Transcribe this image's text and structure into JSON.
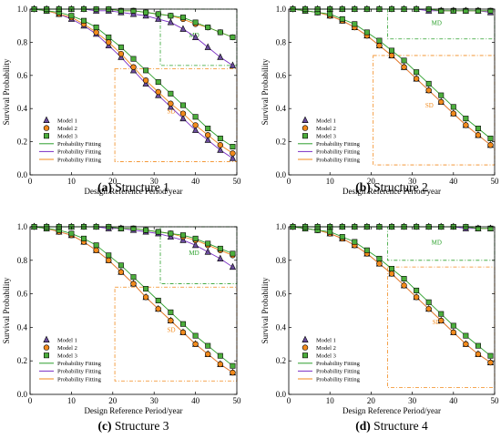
{
  "colors": {
    "model1": "#6a4c9c",
    "model2": "#f28a1c",
    "model3": "#4cae3c",
    "fit_green": "#2ca02c",
    "fit_purple": "#7a2fc4",
    "fit_orange": "#f28a1c",
    "region_md": "#2ca02c",
    "region_sd": "#f28a1c"
  },
  "chart_data": [
    {
      "type": "line",
      "caption_letter": "(a)",
      "caption_text": " Structure 1",
      "xlabel": "Design Reference Period/year",
      "ylabel": "Survival Probability",
      "xlim": [
        0,
        50
      ],
      "ylim": [
        0,
        1.0
      ],
      "x_ticks": [
        "0",
        "10",
        "20",
        "30",
        "40",
        "50"
      ],
      "y_ticks": [
        "0.0",
        "0.2",
        "0.4",
        "0.6",
        "0.8",
        "1.0"
      ],
      "legend_position": "lower-left",
      "regions": [
        {
          "label": "MD",
          "x": [
            31.5,
            50
          ],
          "y": [
            0.66,
            1.0
          ],
          "color": "green"
        },
        {
          "label": "SD",
          "x": [
            20.5,
            50
          ],
          "y": [
            0.08,
            0.64
          ],
          "color": "orange"
        }
      ],
      "x": [
        1,
        4,
        7,
        10,
        13,
        16,
        19,
        22,
        25,
        28,
        31,
        34,
        37,
        40,
        43,
        46,
        49
      ],
      "series": [
        {
          "name": "Model 1",
          "group": "SD",
          "marker": "triangle",
          "values": [
            1.0,
            0.99,
            0.97,
            0.94,
            0.9,
            0.85,
            0.78,
            0.71,
            0.63,
            0.55,
            0.48,
            0.41,
            0.34,
            0.27,
            0.21,
            0.15,
            0.1
          ]
        },
        {
          "name": "Model 2",
          "group": "SD",
          "marker": "circle",
          "values": [
            1.0,
            0.99,
            0.97,
            0.95,
            0.91,
            0.86,
            0.8,
            0.73,
            0.65,
            0.57,
            0.5,
            0.43,
            0.37,
            0.3,
            0.24,
            0.18,
            0.13
          ]
        },
        {
          "name": "Model 3",
          "group": "SD",
          "marker": "square",
          "values": [
            1.0,
            0.99,
            0.98,
            0.96,
            0.93,
            0.89,
            0.83,
            0.77,
            0.7,
            0.63,
            0.56,
            0.49,
            0.42,
            0.35,
            0.28,
            0.22,
            0.17
          ]
        },
        {
          "name": "",
          "group": "MD",
          "marker": "triangle",
          "values": [
            1.0,
            1.0,
            1.0,
            1.0,
            1.0,
            0.99,
            0.99,
            0.98,
            0.97,
            0.96,
            0.94,
            0.92,
            0.88,
            0.83,
            0.77,
            0.71,
            0.66
          ]
        },
        {
          "name": "",
          "group": "MD",
          "marker": "circle",
          "values": [
            1.0,
            1.0,
            1.0,
            1.0,
            1.0,
            1.0,
            1.0,
            0.99,
            0.99,
            0.98,
            0.97,
            0.96,
            0.94,
            0.91,
            0.89,
            0.86,
            0.83
          ]
        },
        {
          "name": "",
          "group": "MD",
          "marker": "square",
          "values": [
            1.0,
            1.0,
            1.0,
            1.0,
            1.0,
            1.0,
            1.0,
            0.99,
            0.99,
            0.98,
            0.97,
            0.96,
            0.95,
            0.92,
            0.89,
            0.86,
            0.83
          ]
        }
      ],
      "legend": [
        "Model 1",
        "Model 2",
        "Model 3",
        "Probability Fitting",
        "Probability Fitting",
        "Probability Fitting"
      ]
    },
    {
      "type": "line",
      "caption_letter": "(b)",
      "caption_text": " Structure 2",
      "xlabel": "Design Reference Period/year",
      "ylabel": "Survival Probability",
      "xlim": [
        0,
        50
      ],
      "ylim": [
        0,
        1.0
      ],
      "x_ticks": [
        "0",
        "10",
        "20",
        "30",
        "40",
        "50"
      ],
      "y_ticks": [
        "0.0",
        "0.2",
        "0.4",
        "0.6",
        "0.8",
        "1.0"
      ],
      "legend_position": "lower-left",
      "regions": [
        {
          "label": "MD",
          "x": [
            24,
            50
          ],
          "y": [
            0.82,
            1.0
          ],
          "color": "green"
        },
        {
          "label": "SD",
          "x": [
            20.5,
            50
          ],
          "y": [
            0.06,
            0.72
          ],
          "color": "orange"
        }
      ],
      "x": [
        1,
        4,
        7,
        10,
        13,
        16,
        19,
        22,
        25,
        28,
        31,
        34,
        37,
        40,
        43,
        46,
        49
      ],
      "series": [
        {
          "name": "Model 1",
          "group": "SD",
          "marker": "triangle",
          "values": [
            1.0,
            0.99,
            0.98,
            0.96,
            0.93,
            0.89,
            0.84,
            0.78,
            0.72,
            0.65,
            0.58,
            0.51,
            0.44,
            0.37,
            0.3,
            0.24,
            0.18
          ]
        },
        {
          "name": "Model 2",
          "group": "SD",
          "marker": "circle",
          "values": [
            1.0,
            0.99,
            0.98,
            0.96,
            0.93,
            0.89,
            0.84,
            0.78,
            0.72,
            0.65,
            0.58,
            0.51,
            0.44,
            0.37,
            0.3,
            0.24,
            0.18
          ]
        },
        {
          "name": "Model 3",
          "group": "SD",
          "marker": "square",
          "values": [
            1.0,
            0.99,
            0.98,
            0.97,
            0.94,
            0.91,
            0.86,
            0.81,
            0.75,
            0.69,
            0.62,
            0.55,
            0.48,
            0.41,
            0.34,
            0.28,
            0.22
          ]
        },
        {
          "name": "",
          "group": "MD",
          "marker": "triangle",
          "values": [
            1.0,
            1.0,
            1.0,
            1.0,
            1.0,
            1.0,
            1.0,
            1.0,
            1.0,
            1.0,
            1.0,
            0.99,
            0.99,
            0.99,
            0.99,
            0.99,
            0.98
          ]
        },
        {
          "name": "",
          "group": "MD",
          "marker": "circle",
          "values": [
            1.0,
            1.0,
            1.0,
            1.0,
            1.0,
            1.0,
            1.0,
            1.0,
            1.0,
            1.0,
            1.0,
            1.0,
            0.99,
            0.99,
            0.99,
            0.99,
            0.99
          ]
        },
        {
          "name": "",
          "group": "MD",
          "marker": "square",
          "values": [
            1.0,
            1.0,
            1.0,
            1.0,
            1.0,
            1.0,
            1.0,
            1.0,
            1.0,
            1.0,
            1.0,
            1.0,
            0.99,
            0.99,
            0.99,
            0.99,
            0.99
          ]
        }
      ],
      "legend": [
        "Model 1",
        "Model 2",
        "Model 3",
        "Probability Fitting",
        "Probability Fitting",
        "Probability Fitting"
      ]
    },
    {
      "type": "line",
      "caption_letter": "(c)",
      "caption_text": " Structure 3",
      "xlabel": "Design Reference Period/year",
      "ylabel": "Survival Probability",
      "xlim": [
        0,
        50
      ],
      "ylim": [
        0,
        1.0
      ],
      "x_ticks": [
        "0",
        "10",
        "20",
        "30",
        "40",
        "50"
      ],
      "y_ticks": [
        "0.0",
        "0.2",
        "0.4",
        "0.6",
        "0.8",
        "1.0"
      ],
      "legend_position": "lower-left",
      "regions": [
        {
          "label": "MD",
          "x": [
            31.5,
            50
          ],
          "y": [
            0.66,
            1.0
          ],
          "color": "green"
        },
        {
          "label": "SD",
          "x": [
            20.5,
            50
          ],
          "y": [
            0.08,
            0.64
          ],
          "color": "orange"
        }
      ],
      "x": [
        1,
        4,
        7,
        10,
        13,
        16,
        19,
        22,
        25,
        28,
        31,
        34,
        37,
        40,
        43,
        46,
        49
      ],
      "series": [
        {
          "name": "Model 1",
          "group": "SD",
          "marker": "triangle",
          "values": [
            1.0,
            0.99,
            0.97,
            0.95,
            0.91,
            0.86,
            0.8,
            0.73,
            0.66,
            0.58,
            0.51,
            0.44,
            0.37,
            0.3,
            0.24,
            0.18,
            0.13
          ]
        },
        {
          "name": "Model 2",
          "group": "SD",
          "marker": "circle",
          "values": [
            1.0,
            0.99,
            0.97,
            0.95,
            0.91,
            0.86,
            0.8,
            0.73,
            0.66,
            0.58,
            0.51,
            0.44,
            0.37,
            0.3,
            0.24,
            0.18,
            0.13
          ]
        },
        {
          "name": "Model 3",
          "group": "SD",
          "marker": "square",
          "values": [
            1.0,
            0.99,
            0.98,
            0.96,
            0.93,
            0.89,
            0.83,
            0.77,
            0.7,
            0.63,
            0.56,
            0.49,
            0.42,
            0.35,
            0.29,
            0.23,
            0.17
          ]
        },
        {
          "name": "",
          "group": "MD",
          "marker": "triangle",
          "values": [
            1.0,
            1.0,
            1.0,
            1.0,
            1.0,
            1.0,
            0.99,
            0.99,
            0.98,
            0.97,
            0.96,
            0.94,
            0.92,
            0.89,
            0.85,
            0.81,
            0.76
          ]
        },
        {
          "name": "",
          "group": "MD",
          "marker": "circle",
          "values": [
            1.0,
            1.0,
            1.0,
            1.0,
            1.0,
            1.0,
            1.0,
            0.99,
            0.99,
            0.98,
            0.97,
            0.96,
            0.94,
            0.92,
            0.89,
            0.86,
            0.83
          ]
        },
        {
          "name": "",
          "group": "MD",
          "marker": "square",
          "values": [
            1.0,
            1.0,
            1.0,
            1.0,
            1.0,
            1.0,
            1.0,
            0.99,
            0.99,
            0.98,
            0.97,
            0.96,
            0.95,
            0.93,
            0.9,
            0.87,
            0.84
          ]
        }
      ],
      "legend": [
        "Model 1",
        "Model 2",
        "Model 3",
        "Probability Fitting",
        "Probability Fitting",
        "Probability Fitting"
      ]
    },
    {
      "type": "line",
      "caption_letter": "(d)",
      "caption_text": " Structure 4",
      "xlabel": "Design Reference Period/year",
      "ylabel": "Survival Probability",
      "xlim": [
        0,
        50
      ],
      "ylim": [
        0,
        1.0
      ],
      "x_ticks": [
        "0",
        "10",
        "20",
        "30",
        "40",
        "50"
      ],
      "y_ticks": [
        "0.0",
        "0.2",
        "0.4",
        "0.6",
        "0.8",
        "1.0"
      ],
      "legend_position": "lower-left",
      "regions": [
        {
          "label": "MD",
          "x": [
            24,
            50
          ],
          "y": [
            0.8,
            1.0
          ],
          "color": "green"
        },
        {
          "label": "SD",
          "x": [
            24,
            50
          ],
          "y": [
            0.04,
            0.76
          ],
          "color": "orange"
        }
      ],
      "x": [
        1,
        4,
        7,
        10,
        13,
        16,
        19,
        22,
        25,
        28,
        31,
        34,
        37,
        40,
        43,
        46,
        49
      ],
      "series": [
        {
          "name": "Model 1",
          "group": "SD",
          "marker": "triangle",
          "values": [
            1.0,
            0.99,
            0.98,
            0.96,
            0.93,
            0.89,
            0.84,
            0.78,
            0.72,
            0.65,
            0.58,
            0.51,
            0.44,
            0.37,
            0.3,
            0.24,
            0.19
          ]
        },
        {
          "name": "Model 2",
          "group": "SD",
          "marker": "circle",
          "values": [
            1.0,
            0.99,
            0.98,
            0.96,
            0.93,
            0.89,
            0.84,
            0.78,
            0.72,
            0.65,
            0.58,
            0.51,
            0.44,
            0.37,
            0.3,
            0.24,
            0.19
          ]
        },
        {
          "name": "Model 3",
          "group": "SD",
          "marker": "square",
          "values": [
            1.0,
            0.99,
            0.98,
            0.97,
            0.94,
            0.91,
            0.86,
            0.81,
            0.75,
            0.69,
            0.62,
            0.55,
            0.48,
            0.41,
            0.35,
            0.29,
            0.23
          ]
        },
        {
          "name": "",
          "group": "MD",
          "marker": "triangle",
          "values": [
            1.0,
            1.0,
            1.0,
            1.0,
            1.0,
            1.0,
            1.0,
            1.0,
            1.0,
            1.0,
            1.0,
            1.0,
            1.0,
            1.0,
            0.99,
            0.99,
            0.99
          ]
        },
        {
          "name": "",
          "group": "MD",
          "marker": "circle",
          "values": [
            1.0,
            1.0,
            1.0,
            1.0,
            1.0,
            1.0,
            1.0,
            1.0,
            1.0,
            1.0,
            1.0,
            1.0,
            1.0,
            1.0,
            1.0,
            0.99,
            0.99
          ]
        },
        {
          "name": "",
          "group": "MD",
          "marker": "square",
          "values": [
            1.0,
            1.0,
            1.0,
            1.0,
            1.0,
            1.0,
            1.0,
            1.0,
            1.0,
            1.0,
            1.0,
            1.0,
            1.0,
            1.0,
            1.0,
            0.99,
            0.99
          ]
        }
      ],
      "legend": [
        "Model 1",
        "Model 2",
        "Model 3",
        "Probability Fitting",
        "Probability Fitting",
        "Probability Fitting"
      ]
    }
  ]
}
